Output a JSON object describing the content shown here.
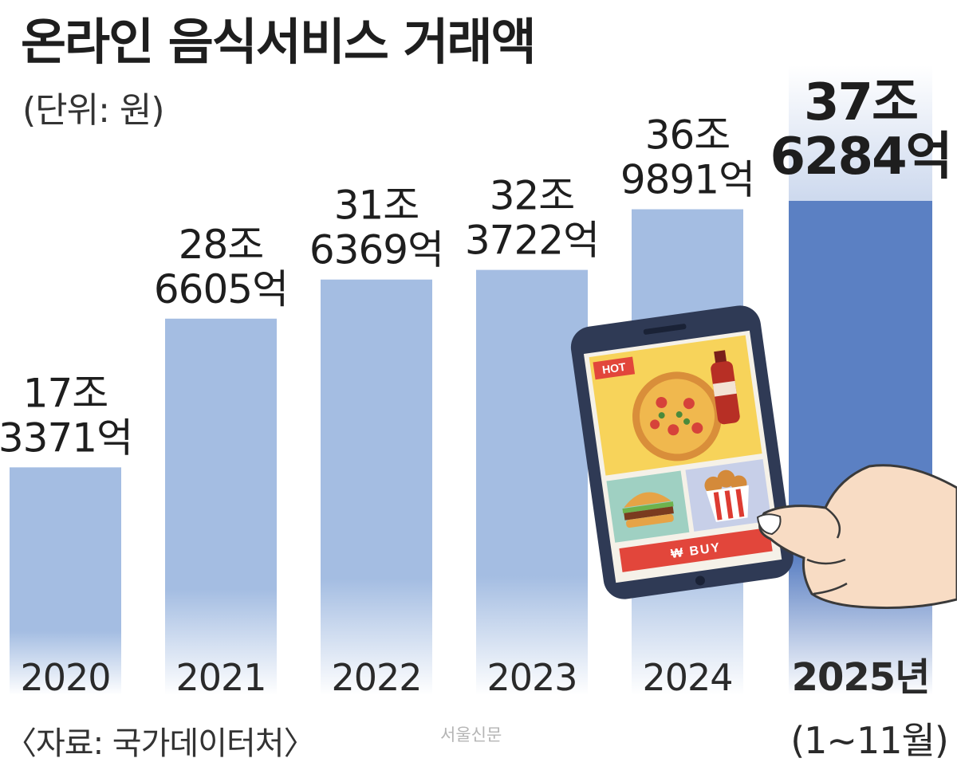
{
  "title": "온라인 음식서비스 거래액",
  "unit_label": "(단위: 원)",
  "source": "〈자료: 국가데이터처〉",
  "watermark": "서울신문",
  "colors": {
    "bar_light": "#a4bde2",
    "bar_highlight": "#5b80c3",
    "text": "#222222"
  },
  "chart_data": {
    "type": "bar",
    "title": "온라인 음식서비스 거래액",
    "unit": "(단위: 원)",
    "categories": [
      "2020",
      "2021",
      "2022",
      "2023",
      "2024",
      "2025년"
    ],
    "category_note": "(1~11월)",
    "values_eok": [
      173371,
      286605,
      316369,
      323722,
      369891,
      376284
    ],
    "data_labels": [
      [
        "17조",
        "3371억"
      ],
      [
        "28조",
        "6605억"
      ],
      [
        "31조",
        "6369억"
      ],
      [
        "32조",
        "3722억"
      ],
      [
        "36조",
        "9891억"
      ],
      [
        "37조",
        "6284억"
      ]
    ],
    "highlight_index": 5,
    "grid": false,
    "legend": "none"
  },
  "illustration": {
    "badge": "HOT",
    "button": "₩ BUY",
    "icons": [
      "smartphone-icon",
      "pizza-icon",
      "cola-bottle-icon",
      "burger-icon",
      "fried-chicken-icon",
      "pointing-hand-icon"
    ]
  }
}
